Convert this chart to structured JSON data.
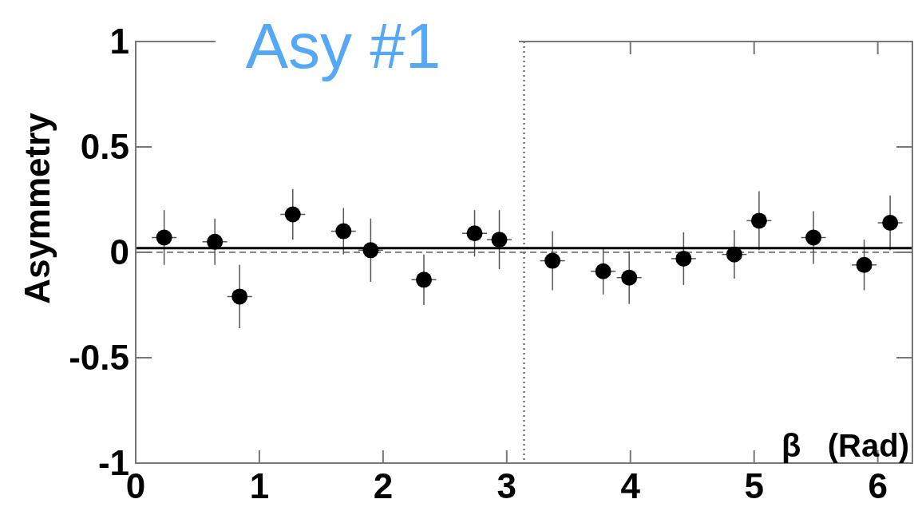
{
  "chart_data": {
    "type": "scatter",
    "title": "Asy #1",
    "xlabel": "β   (Rad)",
    "ylabel": "Asymmetry",
    "x": [
      0.23,
      0.64,
      0.84,
      1.27,
      1.68,
      1.9,
      2.33,
      2.74,
      2.94,
      3.37,
      3.78,
      3.99,
      4.43,
      4.84,
      5.04,
      5.48,
      5.89,
      6.1
    ],
    "series": [
      {
        "color": "#000000",
        "marker": "circle",
        "values": [
          0.07,
          0.05,
          -0.21,
          0.18,
          0.1,
          0.01,
          -0.13,
          0.09,
          0.06,
          -0.04,
          -0.09,
          -0.12,
          -0.03,
          -0.01,
          0.15,
          0.07,
          -0.06,
          0.14
        ],
        "errors": [
          0.13,
          0.11,
          0.15,
          0.12,
          0.11,
          0.15,
          0.12,
          0.11,
          0.14,
          0.14,
          0.11,
          0.125,
          0.125,
          0.115,
          0.14,
          0.125,
          0.12,
          0.13
        ],
        "xerrors": [
          0.1,
          0.1,
          0.1,
          0.1,
          0.1,
          0.1,
          0.1,
          0.1,
          0.1,
          0.1,
          0.1,
          0.1,
          0.1,
          0.1,
          0.1,
          0.1,
          0.1,
          0.1
        ]
      },
      {
        "type": "line",
        "color": "#000000",
        "x": [
          0,
          6.28
        ],
        "values": [
          0.02,
          0.02
        ],
        "line_style": "solid"
      }
    ],
    "xlim": [
      0,
      6.28
    ],
    "xticks": [
      0,
      1,
      2,
      3,
      4,
      5,
      6
    ],
    "ylim": [
      -1,
      1
    ],
    "yticks": [
      -1,
      -0.5,
      0,
      0.5,
      1
    ],
    "ref_lines": [
      {
        "axis": "y",
        "value": 0,
        "line_style": "dashed",
        "color": "#888888"
      },
      {
        "axis": "x",
        "value": 3.14,
        "line_style": "dotted",
        "color": "#555555"
      }
    ],
    "grid": false
  }
}
